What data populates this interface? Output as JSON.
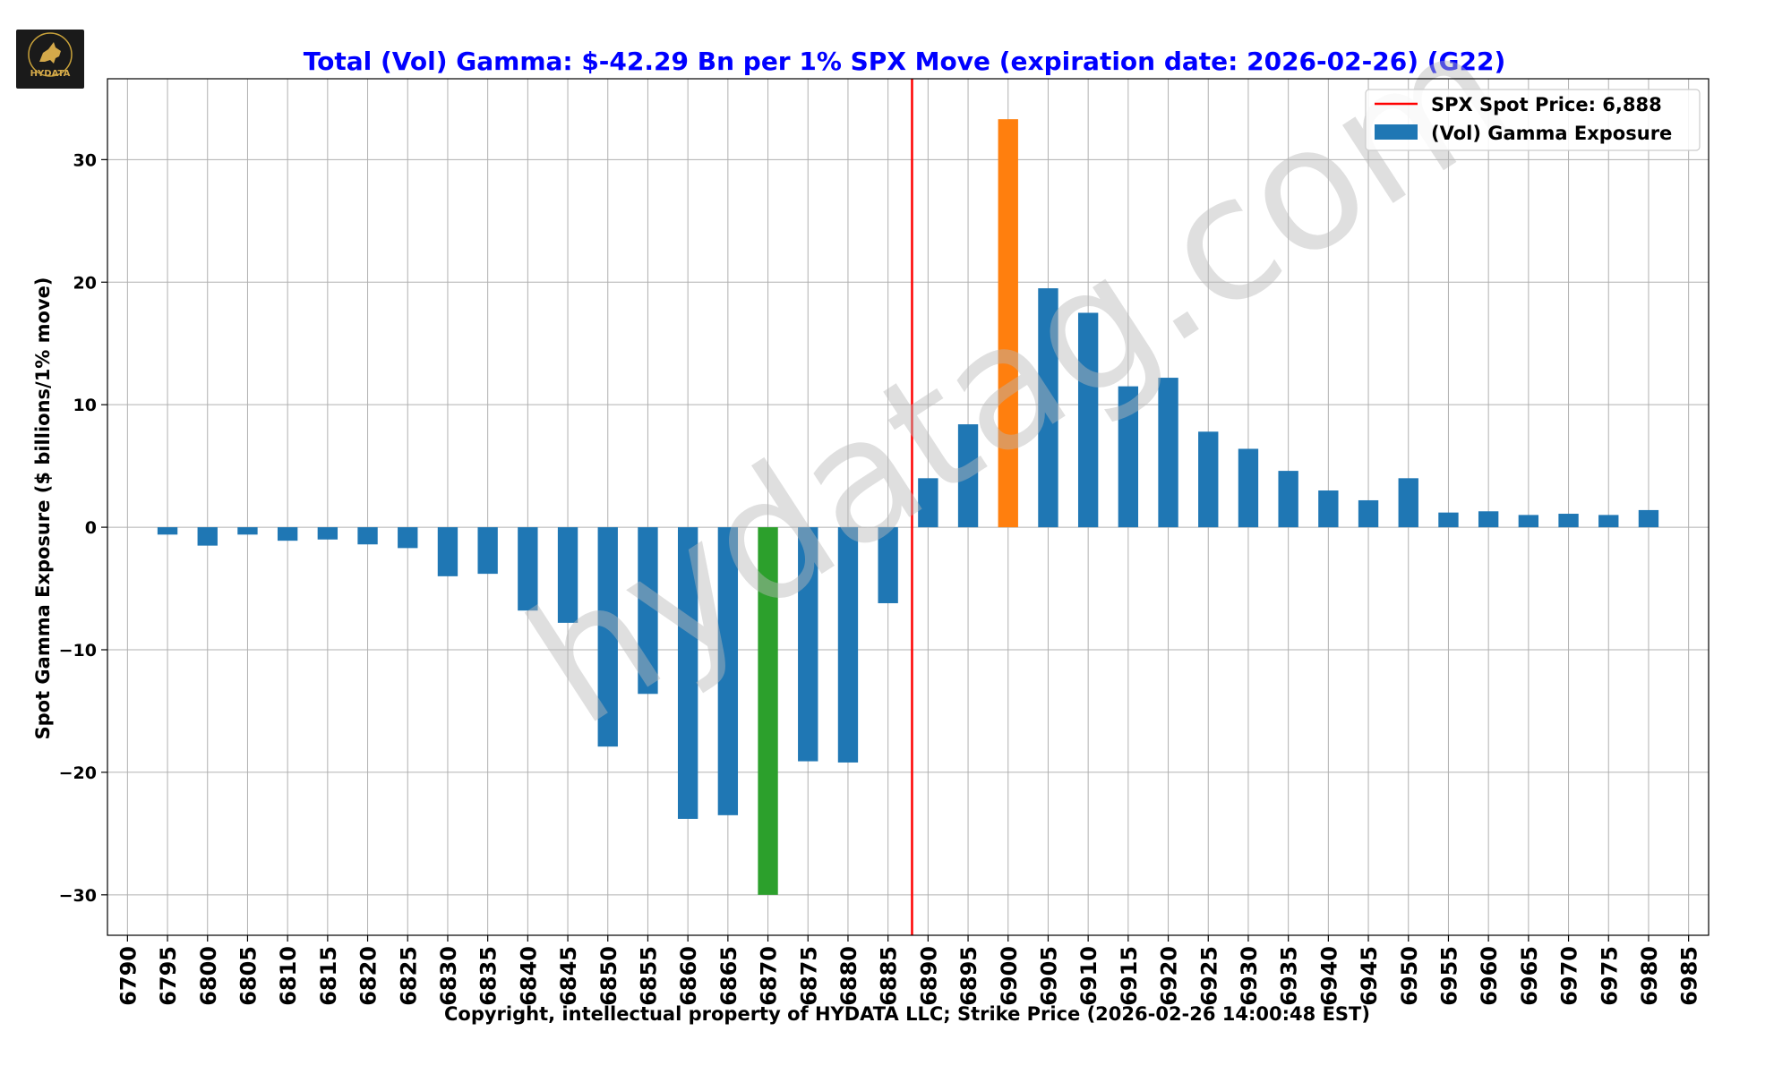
{
  "logo": {
    "text": "HYDATA"
  },
  "watermark": "hydatag.com",
  "chart_data": {
    "type": "bar",
    "title": "Total (Vol) Gamma: $-42.29 Bn per 1% SPX Move (expiration date: 2026-02-26) (G22)",
    "xlabel": "Copyright, intellectual property of HYDATA LLC; Strike Price (2026-02-26 14:00:48 EST)",
    "ylabel": "Spot Gamma Exposure ($ billions/1% move)",
    "ylim": [
      -33.3,
      36.6
    ],
    "xlim": [
      6787.5,
      6987.5
    ],
    "yticks": [
      30,
      20,
      10,
      0,
      -10,
      -20,
      -30
    ],
    "ytick_labels": [
      "30",
      "20",
      "10",
      "0",
      "−10",
      "−20",
      "−30"
    ],
    "xtick_labels": [
      "6790",
      "6795",
      "6800",
      "6805",
      "6810",
      "6815",
      "6820",
      "6825",
      "6830",
      "6835",
      "6840",
      "6845",
      "6850",
      "6855",
      "6860",
      "6865",
      "6870",
      "6875",
      "6880",
      "6885",
      "6890",
      "6895",
      "6900",
      "6905",
      "6910",
      "6915",
      "6920",
      "6925",
      "6930",
      "6935",
      "6940",
      "6945",
      "6950",
      "6955",
      "6960",
      "6965",
      "6970",
      "6975",
      "6980",
      "6985"
    ],
    "grid": true,
    "legend_position": "top-right",
    "spot_price": {
      "value": 6888,
      "label": "SPX Spot Price: 6,888",
      "color": "#ff0000"
    },
    "series": [
      {
        "name": "(Vol) Gamma Exposure",
        "color": "#1f77b4",
        "strikes": [
          6795,
          6800,
          6805,
          6810,
          6815,
          6820,
          6825,
          6830,
          6835,
          6840,
          6845,
          6850,
          6855,
          6860,
          6865,
          6870,
          6875,
          6880,
          6885,
          6890,
          6895,
          6900,
          6905,
          6910,
          6915,
          6920,
          6925,
          6930,
          6935,
          6940,
          6945,
          6950,
          6955,
          6960,
          6965,
          6970,
          6975,
          6980
        ],
        "values": [
          -0.6,
          -1.5,
          -0.6,
          -1.1,
          -1.0,
          -1.4,
          -1.7,
          -4.0,
          -3.8,
          -6.8,
          -7.8,
          -17.9,
          -13.6,
          -23.8,
          -23.5,
          -30.0,
          -19.1,
          -19.2,
          -6.2,
          4.0,
          8.4,
          33.3,
          19.5,
          17.5,
          11.5,
          12.2,
          7.8,
          6.4,
          4.6,
          3.0,
          2.2,
          4.0,
          1.2,
          1.3,
          1.0,
          1.1,
          1.0,
          1.4
        ]
      }
    ],
    "highlight": {
      "min_strike": {
        "strike": 6870,
        "color": "#2ca02c"
      },
      "max_strike": {
        "strike": 6900,
        "color": "#ff7f0e"
      }
    }
  }
}
